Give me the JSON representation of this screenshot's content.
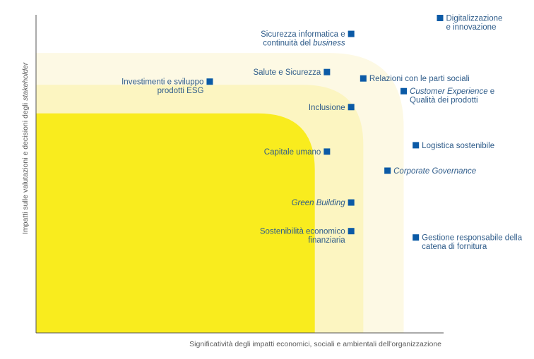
{
  "colors": {
    "zone_inner": "#f9ec1e",
    "zone_middle": "#fcf5c1",
    "zone_outer": "#fdf9e4",
    "marker": "#0b5aa6",
    "label": "#2f5c8a",
    "axis": "#5a5a5a"
  },
  "chart_data": {
    "type": "scatter",
    "title": "",
    "xlabel": "Significatività degli impatti economici, sociali e ambientali dell'organizzazione",
    "ylabel_parts": [
      "Impatti sulle valutazioni e decisioni degli ",
      "stakeholder"
    ],
    "xlim": [
      0,
      100
    ],
    "ylim": [
      0,
      100
    ],
    "grid": false,
    "legend": "none",
    "points": [
      {
        "id": "digitalizzazione",
        "x": 100,
        "y": 99,
        "label_lines": [
          [
            "Digitalizzazione"
          ],
          [
            "e innovazione"
          ]
        ],
        "label_side": "right"
      },
      {
        "id": "sicurezza-informatica",
        "x": 78,
        "y": 94,
        "label_lines": [
          [
            "Sicurezza informatica e"
          ],
          [
            "continuità del ",
            "*business"
          ]
        ],
        "label_side": "left"
      },
      {
        "id": "salute-sicurezza",
        "x": 72,
        "y": 82,
        "label_lines": [
          [
            "Salute e Sicurezza"
          ]
        ],
        "label_side": "left"
      },
      {
        "id": "relazioni-parti-sociali",
        "x": 81,
        "y": 80,
        "label_lines": [
          [
            "Relazioni con le parti sociali"
          ]
        ],
        "label_side": "right"
      },
      {
        "id": "investimenti-esg",
        "x": 43,
        "y": 79,
        "label_lines": [
          [
            "Investimenti e sviluppo"
          ],
          [
            "prodotti ESG"
          ]
        ],
        "label_side": "left"
      },
      {
        "id": "customer-experience",
        "x": 91,
        "y": 76,
        "label_lines": [
          [
            "*Customer Experience",
            " e"
          ],
          [
            "Qualità dei prodotti"
          ]
        ],
        "label_side": "right"
      },
      {
        "id": "inclusione",
        "x": 78,
        "y": 71,
        "label_lines": [
          [
            "Inclusione"
          ]
        ],
        "label_side": "left"
      },
      {
        "id": "logistica-sostenibile",
        "x": 94,
        "y": 59,
        "label_lines": [
          [
            "Logistica sostenibile"
          ]
        ],
        "label_side": "right"
      },
      {
        "id": "capitale-umano",
        "x": 72,
        "y": 57,
        "label_lines": [
          [
            "Capitale umano"
          ]
        ],
        "label_side": "left"
      },
      {
        "id": "corporate-governance",
        "x": 87,
        "y": 51,
        "label_lines": [
          [
            "*Corporate Governance"
          ]
        ],
        "label_side": "right"
      },
      {
        "id": "green-building",
        "x": 78,
        "y": 41,
        "label_lines": [
          [
            "*Green Building"
          ]
        ],
        "label_side": "left"
      },
      {
        "id": "sostenibilita-economico",
        "x": 78,
        "y": 32,
        "label_lines": [
          [
            "Sostenibilità economico"
          ],
          [
            "finanziaria"
          ]
        ],
        "label_side": "left"
      },
      {
        "id": "gestione-fornitura",
        "x": 94,
        "y": 30,
        "label_lines": [
          [
            "Gestione responsabile della"
          ],
          [
            "catena di fornitura"
          ]
        ],
        "label_side": "right"
      }
    ],
    "zones": [
      {
        "name": "outer",
        "x_max": 91,
        "y_max": 88
      },
      {
        "name": "middle",
        "x_max": 81,
        "y_max": 78
      },
      {
        "name": "inner",
        "x_max": 69,
        "y_max": 69
      }
    ]
  }
}
